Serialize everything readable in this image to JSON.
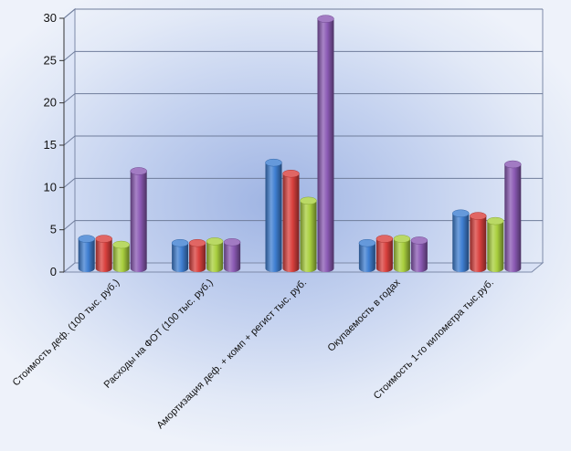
{
  "chart_data": {
    "type": "bar",
    "title": "",
    "xlabel": "",
    "ylabel": "",
    "ylim": [
      0,
      30
    ],
    "yticks": [
      0,
      5,
      10,
      15,
      20,
      25,
      30
    ],
    "grid": true,
    "legend": "none",
    "categories": [
      "Стоимость деф. (100 тыс. руб.)",
      "Расходы на ФОТ (100 тыс. руб.)",
      "Амортизация деф. + комп + регист тыс. руб.",
      "Окупаемость в годах",
      "Стоимость 1-го километра тыс.руб."
    ],
    "series": [
      {
        "color": "#3f7fd2",
        "values": [
          3.5,
          3.0,
          12.5,
          3.0,
          6.5
        ]
      },
      {
        "color": "#d9403d",
        "values": [
          3.5,
          3.0,
          11.2,
          3.5,
          6.2
        ]
      },
      {
        "color": "#a9cf3e",
        "values": [
          2.8,
          3.2,
          8.0,
          3.5,
          5.6
        ]
      },
      {
        "color": "#8b5ab4",
        "values": [
          11.5,
          3.1,
          29.5,
          3.3,
          12.3
        ]
      }
    ]
  }
}
